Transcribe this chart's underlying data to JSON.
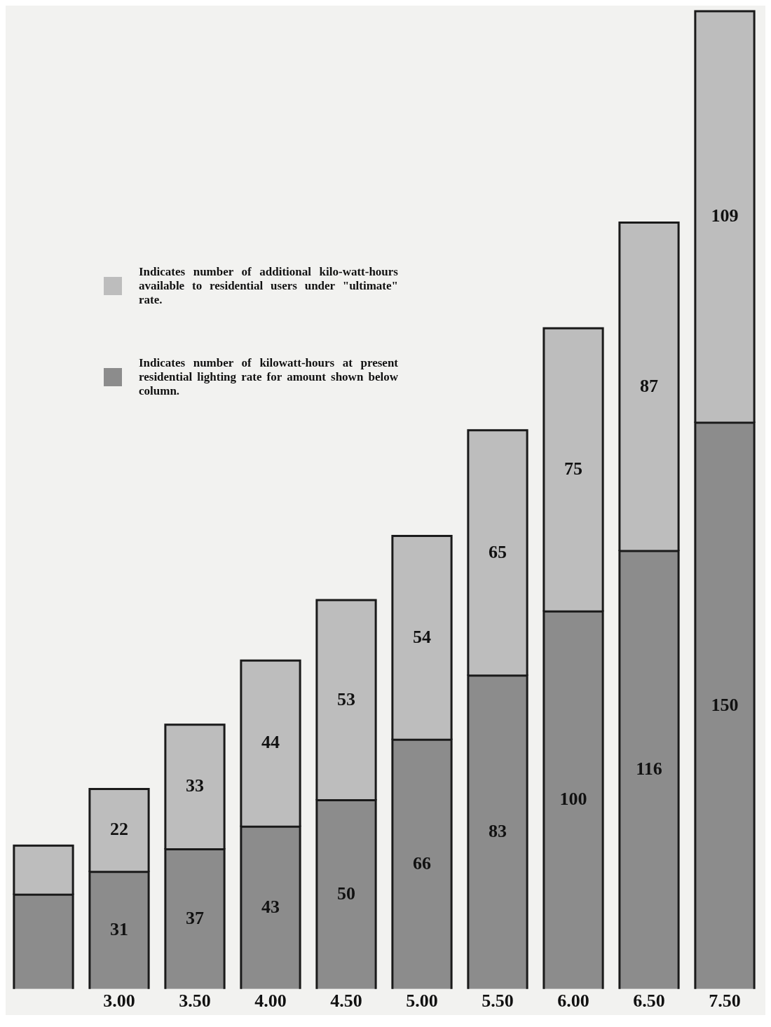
{
  "chart_data": {
    "type": "bar",
    "stacked": true,
    "legend": "top left",
    "grid": false,
    "categories": [
      null,
      "3.00",
      "3.50",
      "4.00",
      "4.50",
      "5.00",
      "5.50",
      "6.00",
      "6.50",
      "7.50"
    ],
    "series": [
      {
        "name": "Indicates number of kilowatt-hours at present residential lighting rate for amount shown below column.",
        "color": "#8c8c8c",
        "values": [
          25,
          31,
          37,
          43,
          50,
          66,
          83,
          100,
          116,
          150
        ],
        "value_labels": [
          null,
          "31",
          "37",
          "43",
          "50",
          "66",
          "83",
          "100",
          "116",
          "150"
        ]
      },
      {
        "name": "Indicates number of additional kilo-watt-hours available to residential users under \"ultimate\" rate.",
        "color": "#bdbdbd",
        "values": [
          13,
          22,
          33,
          44,
          53,
          54,
          65,
          75,
          87,
          109
        ],
        "value_labels": [
          null,
          "22",
          "33",
          "44",
          "53",
          "54",
          "65",
          "75",
          "87",
          "109"
        ]
      }
    ]
  }
}
